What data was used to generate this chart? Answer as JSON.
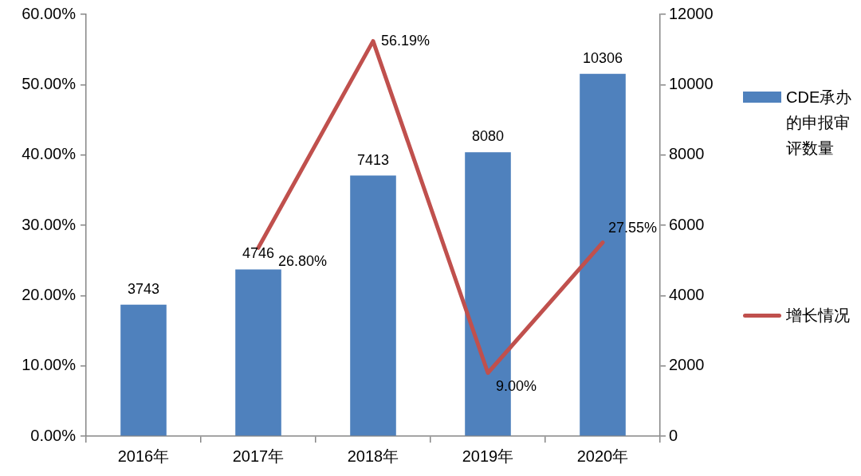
{
  "chart_data": {
    "type": "bar",
    "categories": [
      "2016年",
      "2017年",
      "2018年",
      "2019年",
      "2020年"
    ],
    "series": [
      {
        "name": "CDE承办的申报审评数量",
        "axis": "y2",
        "color": "#4f81bd",
        "values": [
          3743,
          4746,
          7413,
          8080,
          10306
        ],
        "value_labels": [
          "3743",
          "4746",
          "7413",
          "8080",
          "10306"
        ]
      },
      {
        "name": "增长情况",
        "type": "line",
        "color": "#c0504d",
        "values": [
          null,
          26.8,
          56.19,
          9.0,
          27.55
        ],
        "value_labels": [
          null,
          "26.80%",
          "56.19%",
          "9.00%",
          "27.55%"
        ]
      }
    ],
    "ylim": [
      0,
      60
    ],
    "yticks": [
      {
        "value": 0,
        "label": "0.00%"
      },
      {
        "value": 10,
        "label": "10.00%"
      },
      {
        "value": 20,
        "label": "20.00%"
      },
      {
        "value": 30,
        "label": "30.00%"
      },
      {
        "value": 40,
        "label": "40.00%"
      },
      {
        "value": 50,
        "label": "50.00%"
      },
      {
        "value": 60,
        "label": "60.00%"
      }
    ],
    "y2lim": [
      0,
      12000
    ],
    "y2ticks": [
      0,
      2000,
      4000,
      6000,
      8000,
      10000,
      12000
    ],
    "grid": false,
    "legend": "right",
    "marker": "none",
    "line_style": "solid"
  }
}
